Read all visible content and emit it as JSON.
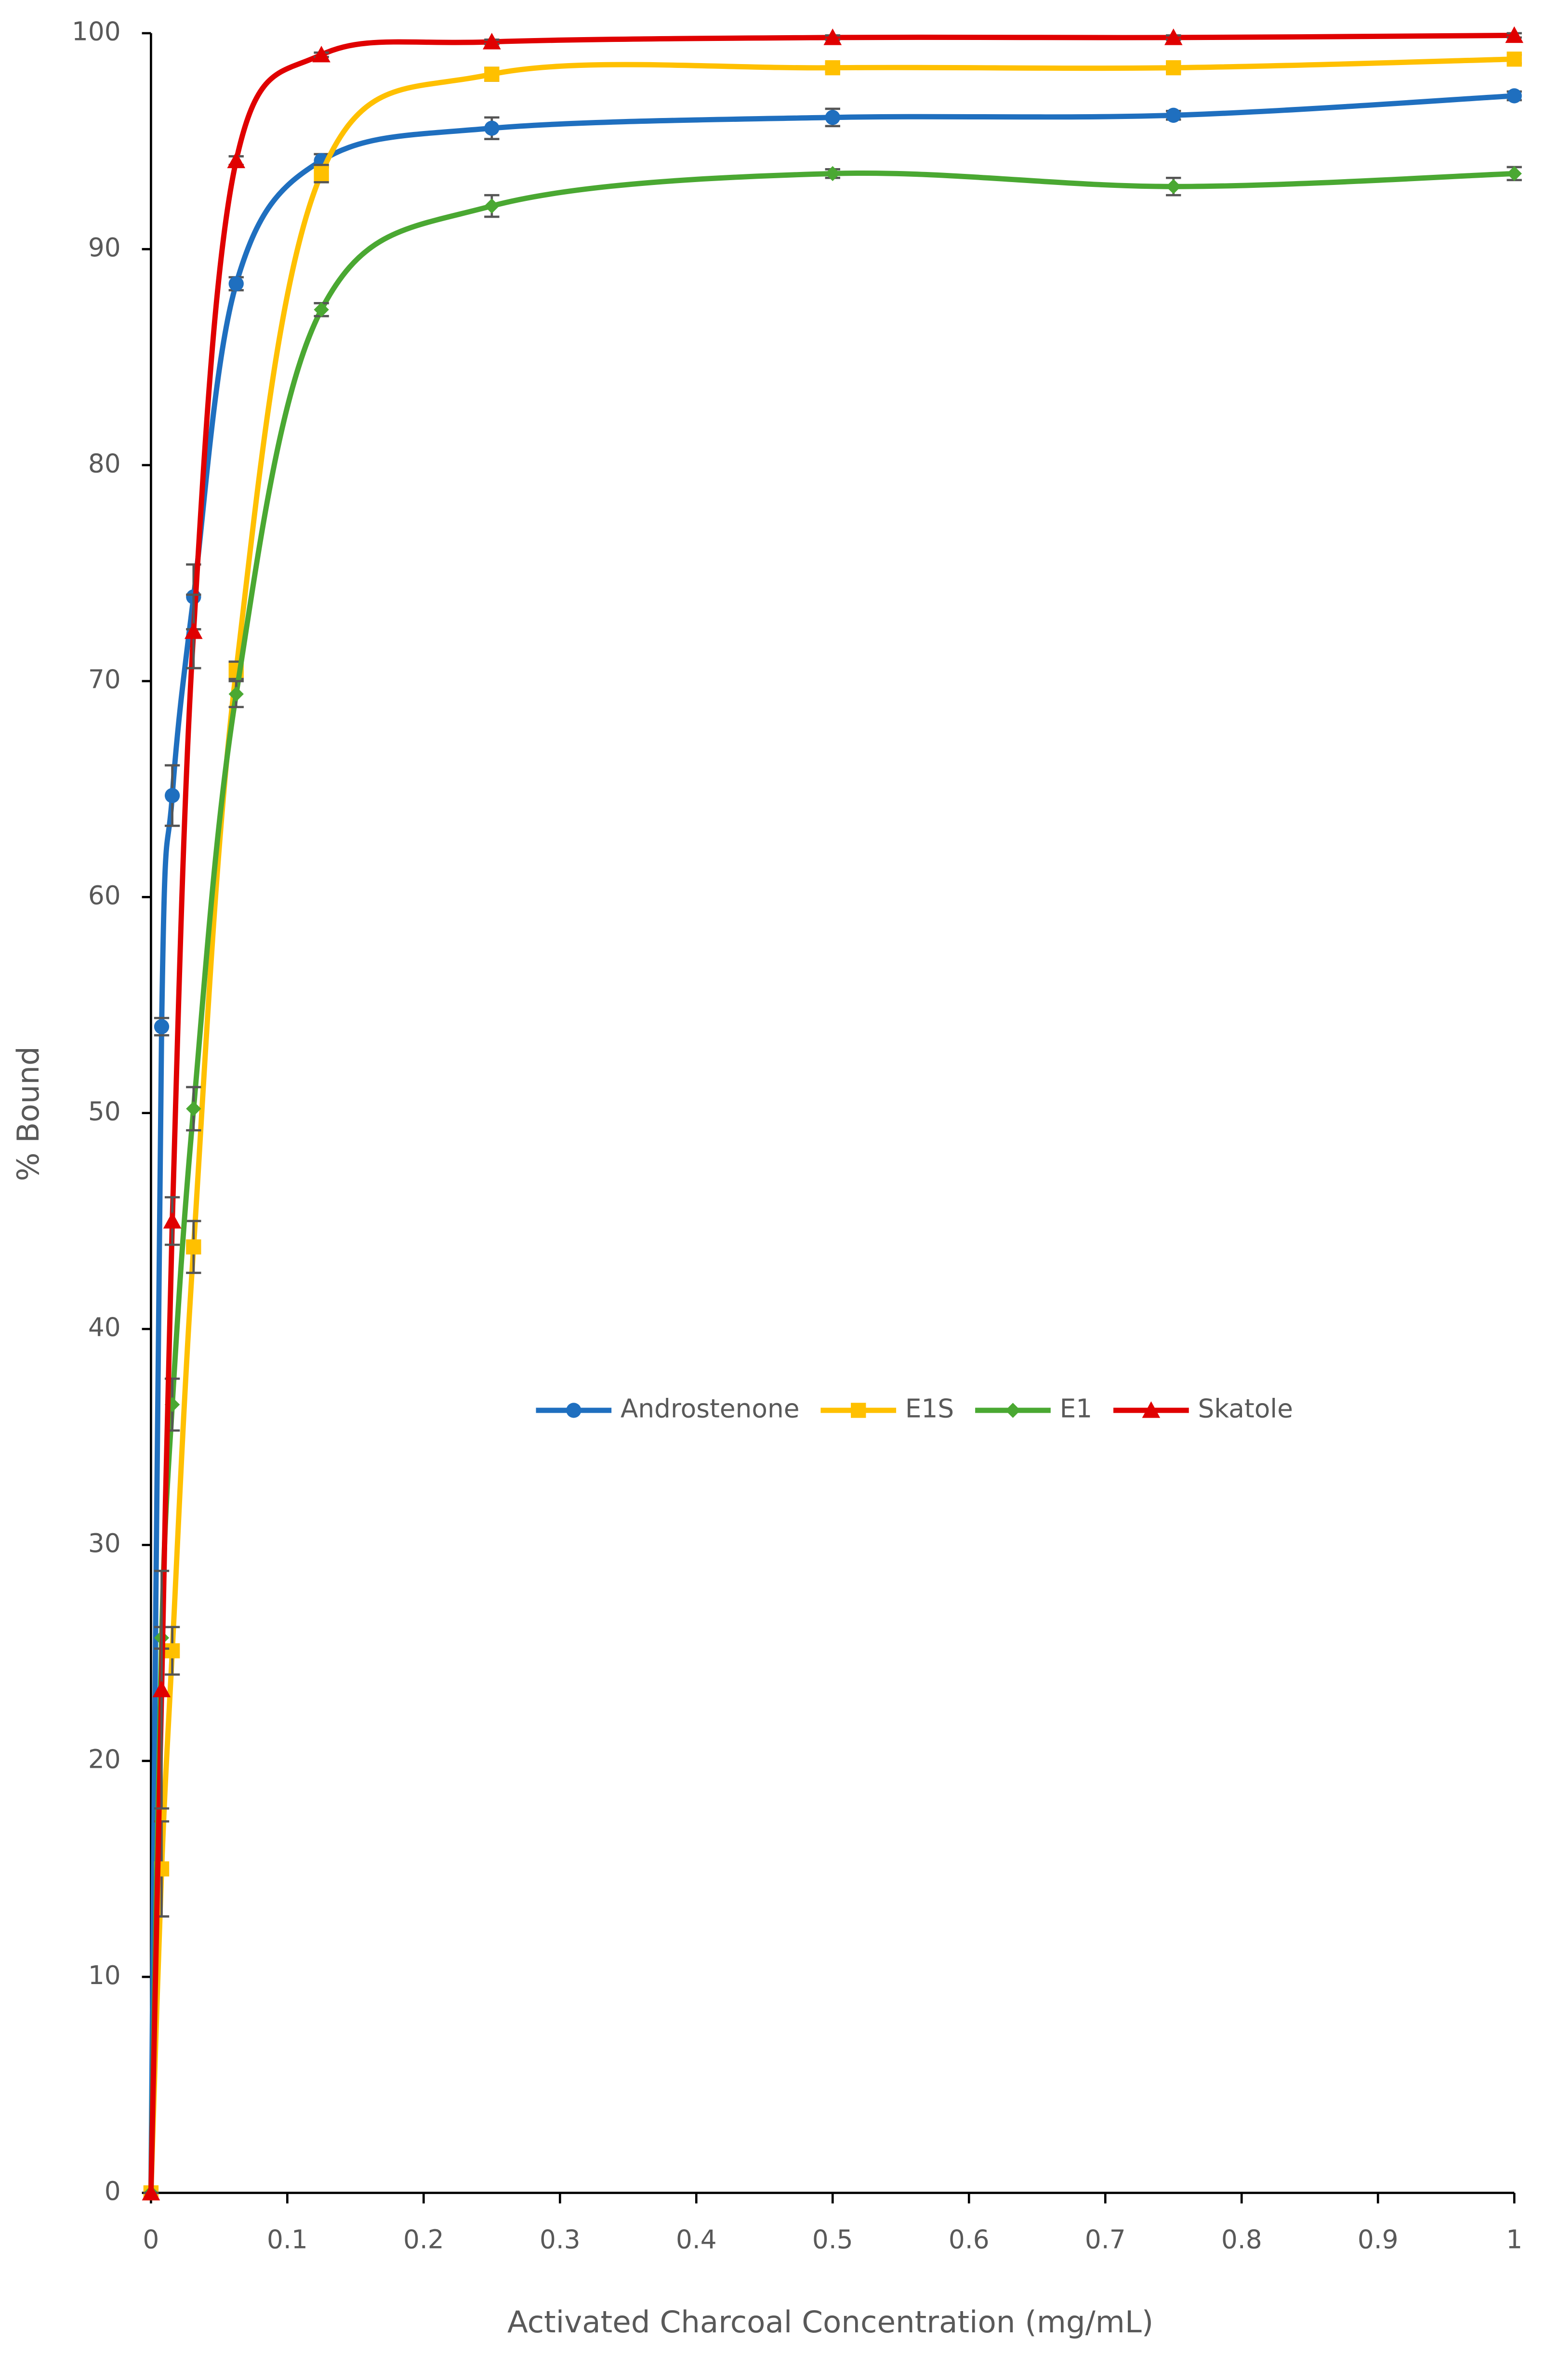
{
  "chart_data": {
    "type": "line",
    "x_label": "Activated Charcoal Concentration (mg/mL)",
    "y_label": "% Bound",
    "x": [
      0,
      0.0078125,
      0.015625,
      0.03125,
      0.0625,
      0.125,
      0.25,
      0.5,
      0.75,
      1
    ],
    "series": [
      {
        "name": "Androstenone",
        "color": "#1f6fbf",
        "marker": "circle",
        "values": [
          0,
          54.0,
          64.7,
          73.9,
          88.4,
          94.1,
          95.6,
          96.1,
          96.2,
          97.1
        ],
        "errors": [
          0,
          0.4,
          1.4,
          1.5,
          0.3,
          0.3,
          0.5,
          0.4,
          0.2,
          0.2
        ]
      },
      {
        "name": "E1S",
        "color": "#ffc000",
        "marker": "square",
        "values": [
          0,
          15.0,
          25.1,
          43.8,
          70.5,
          93.5,
          98.1,
          98.4,
          98.4,
          98.8
        ],
        "errors": [
          0,
          2.2,
          1.1,
          1.2,
          0.4,
          0.4,
          0.3,
          0.2,
          0.2,
          0.2
        ]
      },
      {
        "name": "E1",
        "color": "#4aa832",
        "marker": "diamond",
        "values": [
          0,
          25.7,
          36.5,
          50.2,
          69.4,
          87.2,
          92.0,
          93.5,
          92.9,
          93.5
        ],
        "errors": [
          0,
          0.5,
          1.2,
          1.0,
          0.6,
          0.3,
          0.5,
          0.2,
          0.4,
          0.3
        ]
      },
      {
        "name": "Skatole",
        "color": "#e00000",
        "marker": "triangle",
        "values": [
          0,
          23.3,
          45.0,
          72.3,
          94.1,
          99.0,
          99.6,
          99.8,
          99.8,
          99.9
        ],
        "errors": [
          0,
          5.5,
          1.1,
          1.7,
          0.2,
          0.1,
          0.1,
          0.1,
          0.1,
          0.1
        ]
      }
    ],
    "xlim": [
      0,
      1
    ],
    "xticks": [
      0,
      0.1,
      0.2,
      0.3,
      0.4,
      0.5,
      0.6,
      0.7,
      0.8,
      0.9,
      1
    ],
    "ylim": [
      0,
      100
    ],
    "yticks": [
      0,
      10,
      20,
      30,
      40,
      50,
      60,
      70,
      80,
      90,
      100
    ],
    "grid": false,
    "smooth": true,
    "error_bars": true,
    "legend_position": "center"
  }
}
